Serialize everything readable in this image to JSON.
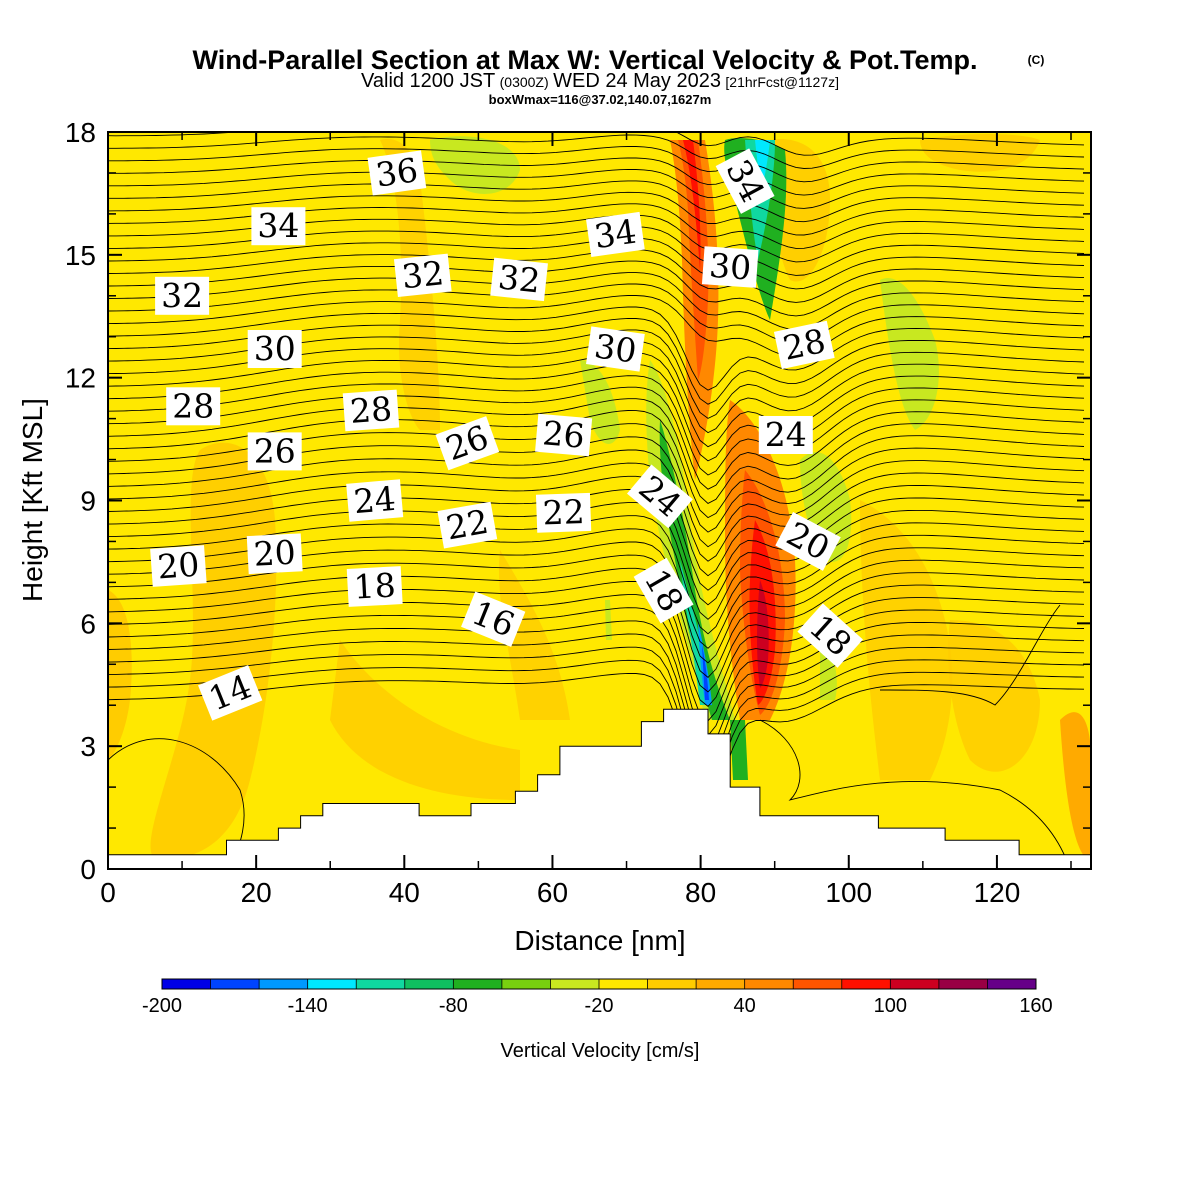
{
  "chart_data": {
    "type": "heatmap",
    "title": "Wind-Parallel Section at Max W: Vertical Velocity & Pot.Temp.",
    "title_mark": "(C)",
    "subtitle_parts": [
      "Valid 1200 JST",
      "(0300Z)",
      "WED 24 May 2023",
      "[21hrFcst@1127z]"
    ],
    "subtitle2": "boxWmax=116@37.02,140.07,1627m",
    "xlabel": "Distance [nm]",
    "ylabel": "Height [Kft MSL]",
    "xlim": [
      0,
      132.7
    ],
    "ylim": [
      0,
      18
    ],
    "xticks": [
      0,
      20,
      40,
      60,
      80,
      100,
      120
    ],
    "yticks": [
      0,
      3,
      6,
      9,
      12,
      15,
      18
    ],
    "xtick_labels": [
      "0",
      "20",
      "40",
      "60",
      "80",
      "100",
      "120"
    ],
    "ytick_labels": [
      "0",
      "3",
      "6",
      "9",
      "12",
      "15",
      "18"
    ],
    "colorbar": {
      "label": "Vertical Velocity [cm/s]",
      "tick_labels": [
        "-200",
        "-140",
        "-80",
        "-20",
        "40",
        "100",
        "160"
      ],
      "bounds": [
        -200,
        -180,
        -160,
        -140,
        -120,
        -100,
        -80,
        -60,
        -40,
        -20,
        0,
        20,
        40,
        60,
        80,
        100,
        120,
        140,
        160
      ],
      "colors": [
        "#0000e6",
        "#0044ff",
        "#0099ff",
        "#00e8ff",
        "#10d8a0",
        "#10c060",
        "#20b020",
        "#78d010",
        "#c8e820",
        "#ffe800",
        "#ffcc00",
        "#ffaa00",
        "#ff8800",
        "#ff5500",
        "#ff1000",
        "#cc0020",
        "#990044",
        "#660088"
      ]
    },
    "terrain_kft": [
      [
        0,
        0.35
      ],
      [
        16,
        0.35
      ],
      [
        16,
        0.7
      ],
      [
        23,
        0.7
      ],
      [
        23,
        1.0
      ],
      [
        26,
        1.0
      ],
      [
        26,
        1.3
      ],
      [
        29,
        1.3
      ],
      [
        29,
        1.6
      ],
      [
        42,
        1.6
      ],
      [
        42,
        1.3
      ],
      [
        49,
        1.3
      ],
      [
        49,
        1.6
      ],
      [
        55,
        1.6
      ],
      [
        55,
        1.9
      ],
      [
        58,
        1.9
      ],
      [
        58,
        2.3
      ],
      [
        61,
        2.3
      ],
      [
        61,
        3.0
      ],
      [
        72,
        3.0
      ],
      [
        72,
        3.6
      ],
      [
        75,
        3.6
      ],
      [
        75,
        3.9
      ],
      [
        81,
        3.9
      ],
      [
        81,
        3.3
      ],
      [
        84,
        3.3
      ],
      [
        84,
        2.0
      ],
      [
        88,
        2.0
      ],
      [
        88,
        1.3
      ],
      [
        104,
        1.3
      ],
      [
        104,
        1.0
      ],
      [
        113,
        1.0
      ],
      [
        113,
        0.7
      ],
      [
        123,
        0.7
      ],
      [
        123,
        0.35
      ],
      [
        132.7,
        0.35
      ]
    ],
    "theta_contour_labels": [
      {
        "text": "36",
        "x": 39,
        "y": 17.0,
        "angle": -8
      },
      {
        "text": "34",
        "x": 23,
        "y": 15.7,
        "angle": 0
      },
      {
        "text": "34",
        "x": 68.5,
        "y": 15.5,
        "angle": -8
      },
      {
        "text": "34",
        "x": 86,
        "y": 16.8,
        "angle": 62
      },
      {
        "text": "32",
        "x": 10,
        "y": 14.0,
        "angle": 0
      },
      {
        "text": "32",
        "x": 42.5,
        "y": 14.5,
        "angle": -6
      },
      {
        "text": "32",
        "x": 55.5,
        "y": 14.4,
        "angle": 6
      },
      {
        "text": "30",
        "x": 22.5,
        "y": 12.7,
        "angle": 0
      },
      {
        "text": "30",
        "x": 68.5,
        "y": 12.7,
        "angle": 8
      },
      {
        "text": "30",
        "x": 84,
        "y": 14.7,
        "angle": 4
      },
      {
        "text": "28",
        "x": 11.5,
        "y": 11.3,
        "angle": 0
      },
      {
        "text": "28",
        "x": 35.5,
        "y": 11.2,
        "angle": -4
      },
      {
        "text": "28",
        "x": 94,
        "y": 12.8,
        "angle": -12
      },
      {
        "text": "26",
        "x": 22.5,
        "y": 10.2,
        "angle": 0
      },
      {
        "text": "26",
        "x": 48.5,
        "y": 10.4,
        "angle": -20
      },
      {
        "text": "26",
        "x": 61.5,
        "y": 10.6,
        "angle": 5
      },
      {
        "text": "24",
        "x": 36,
        "y": 9.0,
        "angle": -5
      },
      {
        "text": "24",
        "x": 74.5,
        "y": 9.1,
        "angle": 40
      },
      {
        "text": "24",
        "x": 91.5,
        "y": 10.6,
        "angle": 0
      },
      {
        "text": "22",
        "x": 48.5,
        "y": 8.4,
        "angle": -10
      },
      {
        "text": "22",
        "x": 61.5,
        "y": 8.7,
        "angle": -2
      },
      {
        "text": "20",
        "x": 9.5,
        "y": 7.4,
        "angle": -4
      },
      {
        "text": "20",
        "x": 22.5,
        "y": 7.7,
        "angle": -3
      },
      {
        "text": "20",
        "x": 94.5,
        "y": 8.0,
        "angle": 28
      },
      {
        "text": "18",
        "x": 36,
        "y": 6.9,
        "angle": -3
      },
      {
        "text": "18",
        "x": 75,
        "y": 6.8,
        "angle": 60
      },
      {
        "text": "18",
        "x": 97.5,
        "y": 5.7,
        "angle": 42
      },
      {
        "text": "16",
        "x": 52,
        "y": 6.1,
        "angle": 22
      },
      {
        "text": "14",
        "x": 16.5,
        "y": 4.3,
        "angle": -22
      }
    ]
  }
}
